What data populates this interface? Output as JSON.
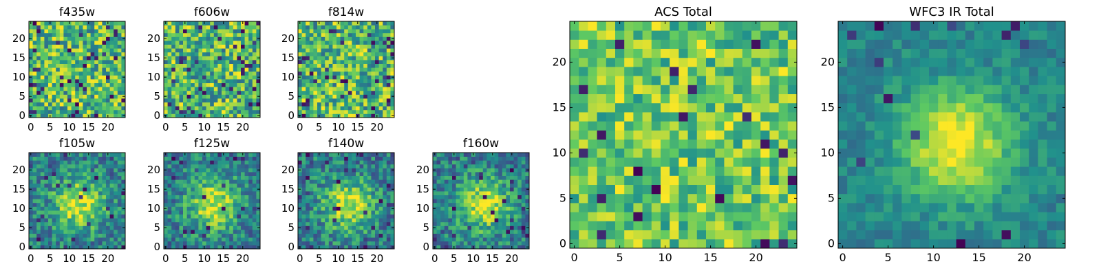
{
  "chart_data": [
    {
      "type": "heatmap",
      "title": "f435w",
      "grid_size": 25,
      "xlim": [
        0,
        24
      ],
      "ylim": [
        0,
        24
      ],
      "xticks": [
        0,
        5,
        10,
        15,
        20
      ],
      "yticks": [
        0,
        5,
        10,
        15,
        20
      ],
      "xtick_labels": [
        "0",
        "5",
        "10",
        "15",
        "20"
      ],
      "ytick_labels": [
        "0",
        "5",
        "10",
        "15",
        "20"
      ],
      "colormap": "viridis",
      "pattern": "noise",
      "seed": 11
    },
    {
      "type": "heatmap",
      "title": "f606w",
      "grid_size": 25,
      "xlim": [
        0,
        24
      ],
      "ylim": [
        0,
        24
      ],
      "xticks": [
        0,
        5,
        10,
        15,
        20
      ],
      "yticks": [
        0,
        5,
        10,
        15,
        20
      ],
      "xtick_labels": [
        "0",
        "5",
        "10",
        "15",
        "20"
      ],
      "ytick_labels": [
        "0",
        "5",
        "10",
        "15",
        "20"
      ],
      "colormap": "viridis",
      "pattern": "noise",
      "seed": 23
    },
    {
      "type": "heatmap",
      "title": "f814w",
      "grid_size": 25,
      "xlim": [
        0,
        24
      ],
      "ylim": [
        0,
        24
      ],
      "xticks": [
        0,
        5,
        10,
        15,
        20
      ],
      "yticks": [
        0,
        5,
        10,
        15,
        20
      ],
      "xtick_labels": [
        "0",
        "5",
        "10",
        "15",
        "20"
      ],
      "ytick_labels": [
        "0",
        "5",
        "10",
        "15",
        "20"
      ],
      "colormap": "viridis",
      "pattern": "noise",
      "seed": 37
    },
    {
      "type": "heatmap",
      "title": "f105w",
      "grid_size": 25,
      "xlim": [
        0,
        24
      ],
      "ylim": [
        0,
        24
      ],
      "xticks": [
        0,
        5,
        10,
        15,
        20
      ],
      "yticks": [
        0,
        5,
        10,
        15,
        20
      ],
      "xtick_labels": [
        "0",
        "5",
        "10",
        "15",
        "20"
      ],
      "ytick_labels": [
        "0",
        "5",
        "10",
        "15",
        "20"
      ],
      "colormap": "viridis",
      "pattern": "blob",
      "seed": 41
    },
    {
      "type": "heatmap",
      "title": "f125w",
      "grid_size": 25,
      "xlim": [
        0,
        24
      ],
      "ylim": [
        0,
        24
      ],
      "xticks": [
        0,
        5,
        10,
        15,
        20
      ],
      "yticks": [
        0,
        5,
        10,
        15,
        20
      ],
      "xtick_labels": [
        "0",
        "5",
        "10",
        "15",
        "20"
      ],
      "ytick_labels": [
        "0",
        "5",
        "10",
        "15",
        "20"
      ],
      "colormap": "viridis",
      "pattern": "blob",
      "seed": 53
    },
    {
      "type": "heatmap",
      "title": "f140w",
      "grid_size": 25,
      "xlim": [
        0,
        24
      ],
      "ylim": [
        0,
        24
      ],
      "xticks": [
        0,
        5,
        10,
        15,
        20
      ],
      "yticks": [
        0,
        5,
        10,
        15,
        20
      ],
      "xtick_labels": [
        "0",
        "5",
        "10",
        "15",
        "20"
      ],
      "ytick_labels": [
        "0",
        "5",
        "10",
        "15",
        "20"
      ],
      "colormap": "viridis",
      "pattern": "blob",
      "seed": 67
    },
    {
      "type": "heatmap",
      "title": "f160w",
      "grid_size": 25,
      "xlim": [
        0,
        24
      ],
      "ylim": [
        0,
        24
      ],
      "xticks": [
        0,
        5,
        10,
        15,
        20
      ],
      "yticks": [
        0,
        5,
        10,
        15,
        20
      ],
      "xtick_labels": [
        "0",
        "5",
        "10",
        "15",
        "20"
      ],
      "ytick_labels": [
        "0",
        "5",
        "10",
        "15",
        "20"
      ],
      "colormap": "viridis",
      "pattern": "blob",
      "seed": 79
    },
    {
      "type": "heatmap",
      "title": "ACS Total",
      "grid_size": 25,
      "xlim": [
        0,
        24
      ],
      "ylim": [
        0,
        24
      ],
      "xticks": [
        0,
        5,
        10,
        15,
        20
      ],
      "yticks": [
        0,
        5,
        10,
        15,
        20
      ],
      "xtick_labels": [
        "0",
        "5",
        "10",
        "15",
        "20"
      ],
      "ytick_labels": [
        "0",
        "5",
        "10",
        "15",
        "20"
      ],
      "colormap": "viridis",
      "pattern": "noise_smooth",
      "seed": 83
    },
    {
      "type": "heatmap",
      "title": "WFC3 IR Total",
      "grid_size": 25,
      "xlim": [
        0,
        24
      ],
      "ylim": [
        0,
        24
      ],
      "xticks": [
        0,
        5,
        10,
        15,
        20
      ],
      "yticks": [
        0,
        5,
        10,
        15,
        20
      ],
      "xtick_labels": [
        "0",
        "5",
        "10",
        "15",
        "20"
      ],
      "ytick_labels": [
        "0",
        "5",
        "10",
        "15",
        "20"
      ],
      "colormap": "viridis",
      "pattern": "blob_smooth",
      "seed": 97
    }
  ],
  "colors": {
    "viridis": [
      "#440154",
      "#3b528b",
      "#21918c",
      "#5ec962",
      "#fde725"
    ],
    "axis": "#000000",
    "background": "#ffffff"
  }
}
